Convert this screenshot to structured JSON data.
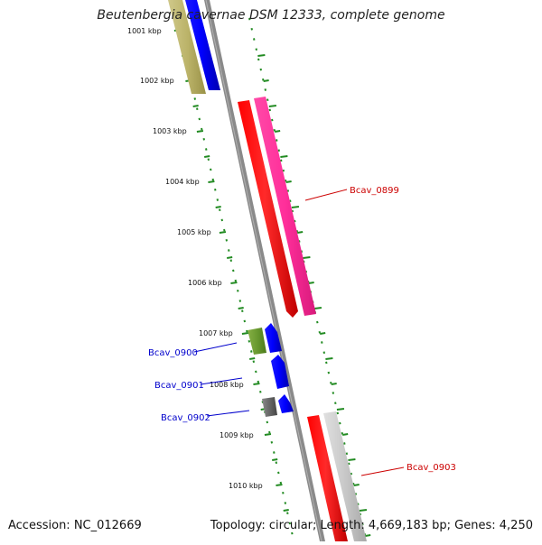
{
  "title": "Beutenbergia cavernae DSM 12333, complete genome",
  "footer": {
    "accession": "Accession: NC_012669",
    "summary": "Topology: circular; Length: 4,669,183 bp; Genes: 4,250"
  },
  "scale_ticks": [
    "1001 kbp",
    "1002 kbp",
    "1003 kbp",
    "1004 kbp",
    "1005 kbp",
    "1006 kbp",
    "1007 kbp",
    "1008 kbp",
    "1009 kbp",
    "1010 kbp"
  ],
  "gene_labels": [
    {
      "text": "Bcav_0899",
      "color": "#cc0000"
    },
    {
      "text": "Bcav_0900",
      "color": "#0000cc"
    },
    {
      "text": "Bcav_0901",
      "color": "#0000cc"
    },
    {
      "text": "Bcav_0902",
      "color": "#0000cc"
    },
    {
      "text": "Bcav_0903",
      "color": "#cc0000"
    }
  ],
  "colors": {
    "forward_gene": "#0000ff",
    "reverse_gene": "#ff0000",
    "rna": "#ff3399",
    "olive": "#b8b060",
    "green": "#6a9a30",
    "gray": "#666666",
    "lightgray": "#cccccc",
    "backbone": "#888888",
    "scale": "#228b22"
  }
}
